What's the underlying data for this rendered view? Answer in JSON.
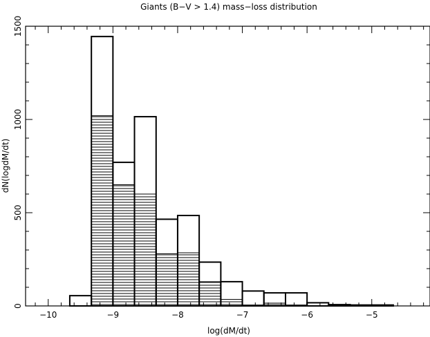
{
  "chart_data": {
    "type": "bar",
    "title": "Giants (B−V > 1.4) mass−loss distribution",
    "xlabel": "log(dM/dt)",
    "ylabel": "dN(logdM/dt)",
    "xlim": [
      -10.35,
      -4.1
    ],
    "ylim": [
      0,
      1500
    ],
    "x_ticks": [
      -10,
      -9,
      -8,
      -7,
      -6,
      -5
    ],
    "x_tick_labels": [
      "−10",
      "−9",
      "−8",
      "−7",
      "−6",
      "−5"
    ],
    "y_ticks": [
      0,
      500,
      1000,
      1500
    ],
    "y_tick_labels": [
      "0",
      "500",
      "1000",
      "1500"
    ],
    "bin_edges": [
      -9.667,
      -9.333,
      -9.0,
      -8.667,
      -8.333,
      -8.0,
      -7.667,
      -7.333,
      -7.0,
      -6.667,
      -6.333,
      -6.0,
      -5.667,
      -5.333,
      -5.0,
      -4.667
    ],
    "series": [
      {
        "style": "outline",
        "values": [
          55,
          1445,
          770,
          1015,
          465,
          485,
          235,
          130,
          80,
          70,
          70,
          17,
          7,
          5,
          5
        ]
      },
      {
        "style": "hatched",
        "values": [
          0,
          1020,
          650,
          600,
          280,
          285,
          130,
          35,
          5,
          15,
          5,
          0,
          0,
          0,
          0
        ]
      }
    ],
    "grid": false,
    "legend": "none"
  }
}
